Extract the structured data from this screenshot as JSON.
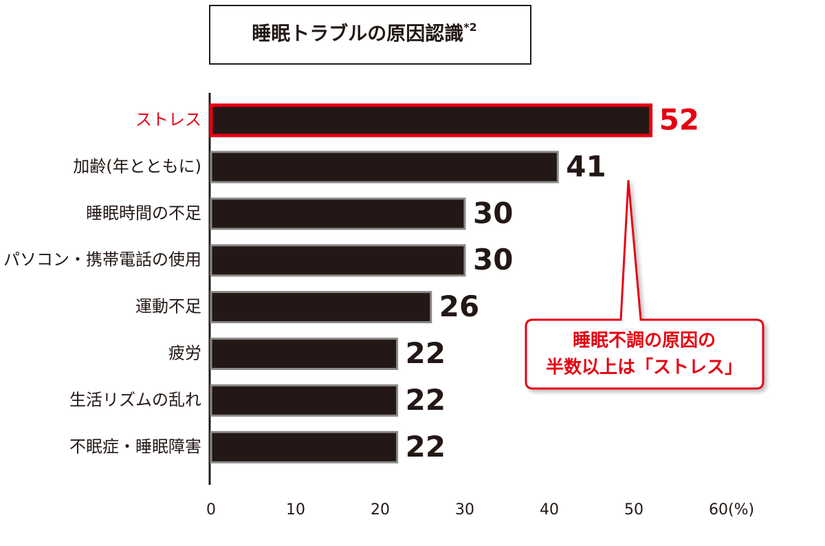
{
  "chart_data": {
    "type": "hbar",
    "title": "睡眠トラブルの原因認識",
    "title_note": "*2",
    "categories": [
      "ストレス",
      "加齢(年とともに)",
      "睡眠時間の不足",
      "パソコン・携帯電話の使用",
      "運動不足",
      "疲労",
      "生活リズムの乱れ",
      "不眠症・睡眠障害"
    ],
    "values": [
      52,
      41,
      30,
      30,
      26,
      22,
      22,
      22
    ],
    "color": "#231815",
    "highlight_index": 0,
    "highlight_color": "#e60012",
    "xlim": [
      0,
      60
    ],
    "xticks": [
      0,
      10,
      20,
      30,
      40,
      50,
      {
        "value": 60,
        "label": "60(%)"
      }
    ],
    "annotation": [
      "睡眠不調の原因の",
      "半数以上は「ストレス」"
    ]
  }
}
